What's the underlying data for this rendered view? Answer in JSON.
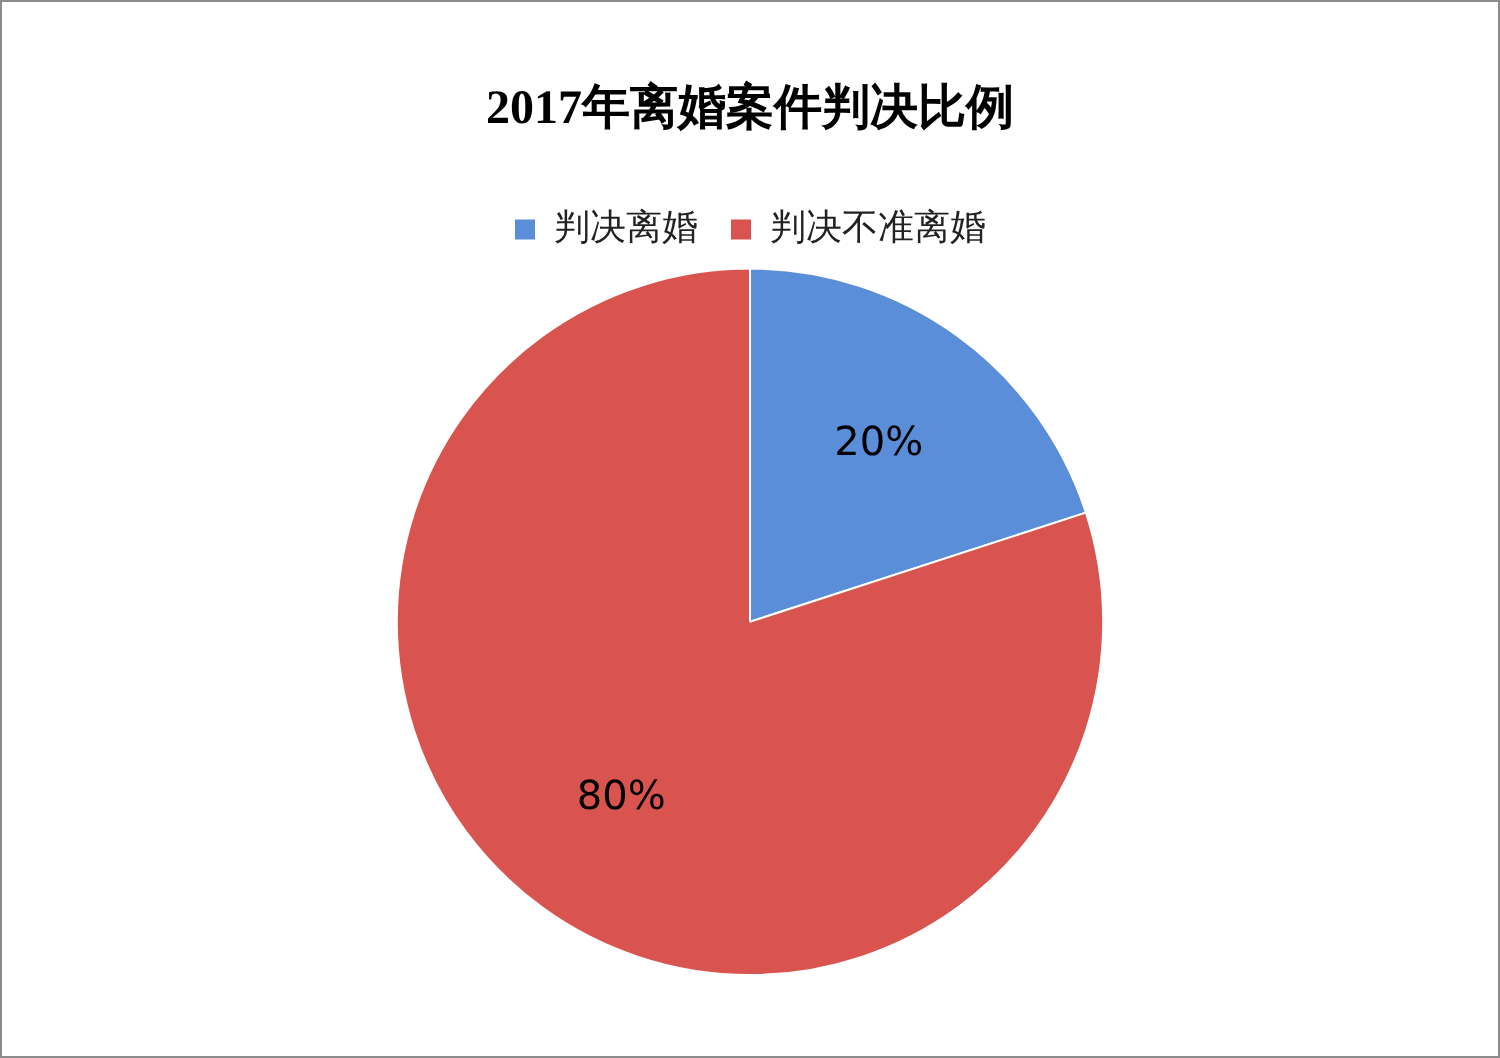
{
  "chart_data": {
    "type": "pie",
    "title": "2017年离婚案件判决比例",
    "categories": [
      "判决离婚",
      "判决不准离婚"
    ],
    "values": [
      20,
      80
    ],
    "colors": [
      "#5b8ed8",
      "#d9534f"
    ],
    "value_labels": [
      "20%",
      "80%"
    ],
    "legend": "top"
  }
}
